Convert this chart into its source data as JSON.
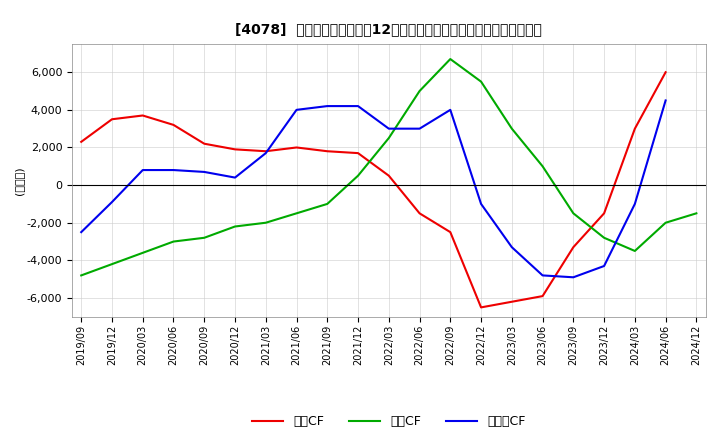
{
  "title": "[4078]  キャッシュフローの12か月移動合計の対前年同期増減額の推移",
  "ylabel": "(百万円)",
  "ylim": [
    -7000,
    7500
  ],
  "yticks": [
    -6000,
    -4000,
    -2000,
    0,
    2000,
    4000,
    6000
  ],
  "legend_labels": [
    "営業CF",
    "投資CF",
    "フリーCF"
  ],
  "legend_colors": [
    "#ee0000",
    "#00aa00",
    "#0000ee"
  ],
  "x_labels": [
    "2019/09",
    "2019/12",
    "2020/03",
    "2020/06",
    "2020/09",
    "2020/12",
    "2021/03",
    "2021/06",
    "2021/09",
    "2021/12",
    "2022/03",
    "2022/06",
    "2022/09",
    "2022/12",
    "2023/03",
    "2023/06",
    "2023/09",
    "2023/12",
    "2024/03",
    "2024/06",
    "2024/12"
  ],
  "eigyo_cf": [
    2300,
    3500,
    3700,
    3200,
    2200,
    1900,
    1800,
    2000,
    1800,
    1700,
    500,
    -1500,
    -2500,
    -6500,
    -6200,
    -5900,
    -3300,
    -1500,
    3000,
    6000,
    null
  ],
  "toshi_cf": [
    -4800,
    -4200,
    -3600,
    -3000,
    -2800,
    -2200,
    -2000,
    -1500,
    -1000,
    500,
    2500,
    5000,
    6700,
    5500,
    3000,
    1000,
    -1500,
    -2800,
    -3500,
    -2000,
    -1500
  ],
  "free_cf": [
    -2500,
    -900,
    800,
    800,
    700,
    400,
    1700,
    4000,
    4200,
    4200,
    3000,
    3000,
    4000,
    -1000,
    -3300,
    -4800,
    -4900,
    -4300,
    -1000,
    4500,
    null
  ]
}
